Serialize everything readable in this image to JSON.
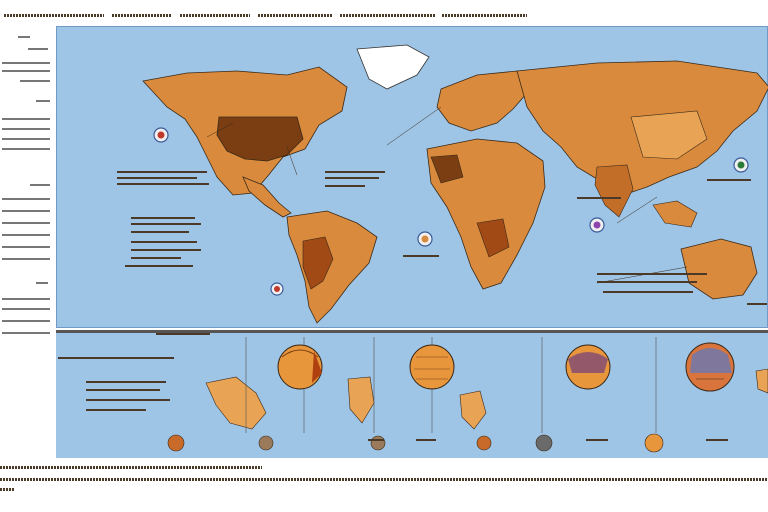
{
  "colors": {
    "ocean": "#9ec4e6",
    "land_primary": "#d98a3c",
    "land_dark": "#7a3e12",
    "land_light": "#e8a355",
    "ice": "#ffffff",
    "panel_border": "#555555"
  },
  "icons": [
    "globe-icon",
    "globe-icon",
    "globe-icon",
    "globe-icon",
    "globe-icon",
    "globe-icon"
  ],
  "globes": [
    {
      "name": "globe-1"
    },
    {
      "name": "globe-2"
    },
    {
      "name": "globe-3"
    },
    {
      "name": "globe-4"
    }
  ]
}
